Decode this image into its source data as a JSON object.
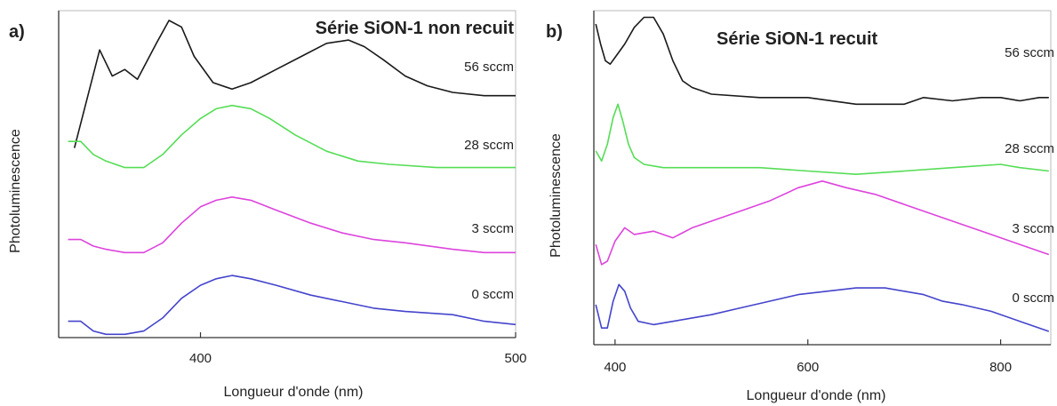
{
  "chart_data": [
    {
      "type": "line",
      "panel_label": "a)",
      "title": "Série SiON-1 non recuit",
      "xlabel": "Longueur d'onde (nm)",
      "ylabel": "Photoluminescence",
      "xlim": [
        355,
        500
      ],
      "x_ticks": [
        400,
        500
      ],
      "x_tick_labels": [
        "400",
        "500"
      ],
      "y_ticks_shown": false,
      "grid": false,
      "series": [
        {
          "label": "56 sccm",
          "color": "#1a1a1a",
          "points": [
            [
              360,
              0.58
            ],
            [
              368,
              0.88
            ],
            [
              372,
              0.8
            ],
            [
              376,
              0.82
            ],
            [
              380,
              0.79
            ],
            [
              386,
              0.9
            ],
            [
              390,
              0.97
            ],
            [
              394,
              0.95
            ],
            [
              398,
              0.86
            ],
            [
              404,
              0.78
            ],
            [
              410,
              0.76
            ],
            [
              416,
              0.78
            ],
            [
              424,
              0.82
            ],
            [
              432,
              0.86
            ],
            [
              440,
              0.9
            ],
            [
              447,
              0.91
            ],
            [
              452,
              0.89
            ],
            [
              458,
              0.85
            ],
            [
              465,
              0.8
            ],
            [
              472,
              0.77
            ],
            [
              480,
              0.75
            ],
            [
              490,
              0.74
            ],
            [
              500,
              0.74
            ]
          ]
        },
        {
          "label": "28 sccm",
          "color": "#55dd55",
          "points": [
            [
              358,
              0.6
            ],
            [
              362,
              0.6
            ],
            [
              366,
              0.56
            ],
            [
              370,
              0.54
            ],
            [
              376,
              0.52
            ],
            [
              382,
              0.52
            ],
            [
              388,
              0.56
            ],
            [
              394,
              0.62
            ],
            [
              400,
              0.67
            ],
            [
              405,
              0.7
            ],
            [
              410,
              0.71
            ],
            [
              416,
              0.7
            ],
            [
              422,
              0.67
            ],
            [
              430,
              0.62
            ],
            [
              440,
              0.57
            ],
            [
              450,
              0.54
            ],
            [
              460,
              0.53
            ],
            [
              475,
              0.52
            ],
            [
              490,
              0.52
            ],
            [
              500,
              0.52
            ]
          ]
        },
        {
          "label": "3 sccm",
          "color": "#dd44dd",
          "points": [
            [
              358,
              0.3
            ],
            [
              362,
              0.3
            ],
            [
              366,
              0.28
            ],
            [
              370,
              0.27
            ],
            [
              376,
              0.26
            ],
            [
              382,
              0.26
            ],
            [
              388,
              0.29
            ],
            [
              394,
              0.35
            ],
            [
              400,
              0.4
            ],
            [
              405,
              0.42
            ],
            [
              410,
              0.43
            ],
            [
              416,
              0.42
            ],
            [
              424,
              0.39
            ],
            [
              435,
              0.35
            ],
            [
              445,
              0.32
            ],
            [
              455,
              0.3
            ],
            [
              465,
              0.29
            ],
            [
              480,
              0.27
            ],
            [
              490,
              0.26
            ],
            [
              500,
              0.26
            ]
          ]
        },
        {
          "label": "0 sccm",
          "color": "#4444cc",
          "points": [
            [
              358,
              0.05
            ],
            [
              362,
              0.05
            ],
            [
              366,
              0.02
            ],
            [
              370,
              0.01
            ],
            [
              376,
              0.01
            ],
            [
              382,
              0.02
            ],
            [
              388,
              0.06
            ],
            [
              394,
              0.12
            ],
            [
              400,
              0.16
            ],
            [
              405,
              0.18
            ],
            [
              410,
              0.19
            ],
            [
              416,
              0.18
            ],
            [
              424,
              0.16
            ],
            [
              435,
              0.13
            ],
            [
              445,
              0.11
            ],
            [
              455,
              0.09
            ],
            [
              465,
              0.08
            ],
            [
              480,
              0.07
            ],
            [
              490,
              0.05
            ],
            [
              500,
              0.04
            ]
          ]
        }
      ]
    },
    {
      "type": "line",
      "panel_label": "b)",
      "title": "Série SiON-1 recuit",
      "xlabel": "Longueur d'onde (nm)",
      "ylabel": "Photoluminescence",
      "xlim": [
        378,
        852
      ],
      "x_ticks": [
        400,
        600,
        800
      ],
      "x_tick_labels": [
        "400",
        "600",
        "800"
      ],
      "y_ticks_shown": false,
      "grid": false,
      "series": [
        {
          "label": "56 sccm",
          "color": "#1a1a1a",
          "points": [
            [
              380,
              0.96
            ],
            [
              385,
              0.9
            ],
            [
              390,
              0.85
            ],
            [
              395,
              0.84
            ],
            [
              400,
              0.86
            ],
            [
              410,
              0.9
            ],
            [
              420,
              0.95
            ],
            [
              430,
              0.98
            ],
            [
              440,
              0.98
            ],
            [
              450,
              0.93
            ],
            [
              460,
              0.85
            ],
            [
              470,
              0.79
            ],
            [
              480,
              0.77
            ],
            [
              500,
              0.75
            ],
            [
              550,
              0.74
            ],
            [
              600,
              0.74
            ],
            [
              650,
              0.72
            ],
            [
              700,
              0.72
            ],
            [
              720,
              0.74
            ],
            [
              750,
              0.73
            ],
            [
              780,
              0.74
            ],
            [
              800,
              0.74
            ],
            [
              820,
              0.73
            ],
            [
              840,
              0.74
            ],
            [
              850,
              0.74
            ]
          ]
        },
        {
          "label": "28 sccm",
          "color": "#55dd55",
          "points": [
            [
              380,
              0.58
            ],
            [
              386,
              0.55
            ],
            [
              392,
              0.6
            ],
            [
              398,
              0.68
            ],
            [
              403,
              0.72
            ],
            [
              408,
              0.67
            ],
            [
              414,
              0.6
            ],
            [
              420,
              0.56
            ],
            [
              430,
              0.54
            ],
            [
              450,
              0.53
            ],
            [
              500,
              0.53
            ],
            [
              550,
              0.53
            ],
            [
              600,
              0.52
            ],
            [
              650,
              0.51
            ],
            [
              700,
              0.52
            ],
            [
              750,
              0.53
            ],
            [
              800,
              0.54
            ],
            [
              820,
              0.53
            ],
            [
              850,
              0.52
            ]
          ]
        },
        {
          "label": "3 sccm",
          "color": "#dd44dd",
          "points": [
            [
              380,
              0.3
            ],
            [
              386,
              0.24
            ],
            [
              392,
              0.25
            ],
            [
              400,
              0.31
            ],
            [
              410,
              0.35
            ],
            [
              420,
              0.33
            ],
            [
              440,
              0.34
            ],
            [
              460,
              0.32
            ],
            [
              480,
              0.35
            ],
            [
              500,
              0.37
            ],
            [
              530,
              0.4
            ],
            [
              560,
              0.43
            ],
            [
              590,
              0.47
            ],
            [
              615,
              0.49
            ],
            [
              640,
              0.47
            ],
            [
              670,
              0.45
            ],
            [
              700,
              0.42
            ],
            [
              730,
              0.39
            ],
            [
              760,
              0.36
            ],
            [
              790,
              0.33
            ],
            [
              820,
              0.3
            ],
            [
              850,
              0.27
            ]
          ]
        },
        {
          "label": "0 sccm",
          "color": "#4444cc",
          "points": [
            [
              380,
              0.12
            ],
            [
              386,
              0.05
            ],
            [
              392,
              0.05
            ],
            [
              398,
              0.13
            ],
            [
              404,
              0.18
            ],
            [
              410,
              0.16
            ],
            [
              416,
              0.11
            ],
            [
              424,
              0.07
            ],
            [
              440,
              0.06
            ],
            [
              460,
              0.07
            ],
            [
              480,
              0.08
            ],
            [
              500,
              0.09
            ],
            [
              530,
              0.11
            ],
            [
              560,
              0.13
            ],
            [
              590,
              0.15
            ],
            [
              620,
              0.16
            ],
            [
              650,
              0.17
            ],
            [
              680,
              0.17
            ],
            [
              700,
              0.16
            ],
            [
              720,
              0.15
            ],
            [
              740,
              0.13
            ],
            [
              760,
              0.12
            ],
            [
              790,
              0.1
            ],
            [
              820,
              0.07
            ],
            [
              850,
              0.04
            ]
          ]
        }
      ]
    }
  ]
}
